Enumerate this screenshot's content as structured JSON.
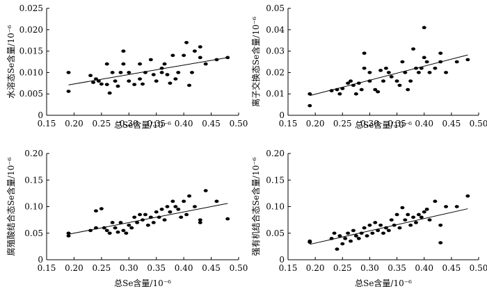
{
  "chart_data": [
    {
      "type": "scatter",
      "xlabel": "总Se含量/10⁻⁶",
      "ylabel": "水溶态Se含量/10⁻⁶",
      "xlim": [
        0.15,
        0.5
      ],
      "ylim": [
        0,
        0.025
      ],
      "xticks": [
        "0.15",
        "0.20",
        "0.25",
        "0.30",
        "0.35",
        "0.40",
        "0.45",
        "0.50"
      ],
      "yticks": [
        "0",
        "0.005",
        "0.010",
        "0.015",
        "0.020",
        "0.025"
      ],
      "trendline": {
        "x": [
          0.19,
          0.48
        ],
        "y": [
          0.0071,
          0.0135
        ]
      },
      "points": [
        [
          0.19,
          0.01
        ],
        [
          0.19,
          0.0056
        ],
        [
          0.23,
          0.0093
        ],
        [
          0.235,
          0.0077
        ],
        [
          0.24,
          0.0085
        ],
        [
          0.245,
          0.008
        ],
        [
          0.25,
          0.0073
        ],
        [
          0.26,
          0.012
        ],
        [
          0.26,
          0.0072
        ],
        [
          0.265,
          0.0052
        ],
        [
          0.27,
          0.01
        ],
        [
          0.275,
          0.008
        ],
        [
          0.28,
          0.0068
        ],
        [
          0.285,
          0.01
        ],
        [
          0.29,
          0.015
        ],
        [
          0.29,
          0.012
        ],
        [
          0.3,
          0.01
        ],
        [
          0.3,
          0.008
        ],
        [
          0.31,
          0.0072
        ],
        [
          0.32,
          0.012
        ],
        [
          0.32,
          0.0085
        ],
        [
          0.325,
          0.0073
        ],
        [
          0.33,
          0.01
        ],
        [
          0.34,
          0.013
        ],
        [
          0.345,
          0.0095
        ],
        [
          0.35,
          0.008
        ],
        [
          0.36,
          0.011
        ],
        [
          0.36,
          0.01
        ],
        [
          0.365,
          0.012
        ],
        [
          0.37,
          0.0095
        ],
        [
          0.375,
          0.0075
        ],
        [
          0.38,
          0.014
        ],
        [
          0.385,
          0.0085
        ],
        [
          0.39,
          0.01
        ],
        [
          0.4,
          0.014
        ],
        [
          0.405,
          0.017
        ],
        [
          0.41,
          0.007
        ],
        [
          0.415,
          0.01
        ],
        [
          0.42,
          0.015
        ],
        [
          0.43,
          0.0135
        ],
        [
          0.43,
          0.016
        ],
        [
          0.44,
          0.012
        ],
        [
          0.46,
          0.013
        ],
        [
          0.48,
          0.0135
        ]
      ]
    },
    {
      "type": "scatter",
      "xlabel": "总Se含量/10⁻⁶",
      "ylabel": "离子交换态Se含量/10⁻⁶",
      "xlim": [
        0.15,
        0.5
      ],
      "ylim": [
        0,
        0.05
      ],
      "xticks": [
        "0.15",
        "0.20",
        "0.25",
        "0.30",
        "0.35",
        "0.40",
        "0.45",
        "0.50"
      ],
      "yticks": [
        "0",
        "0.01",
        "0.02",
        "0.03",
        "0.04",
        "0.05"
      ],
      "trendline": {
        "x": [
          0.19,
          0.48
        ],
        "y": [
          0.0092,
          0.0282
        ]
      },
      "points": [
        [
          0.19,
          0.01
        ],
        [
          0.19,
          0.0045
        ],
        [
          0.23,
          0.0115
        ],
        [
          0.24,
          0.012
        ],
        [
          0.245,
          0.01
        ],
        [
          0.25,
          0.0125
        ],
        [
          0.26,
          0.015
        ],
        [
          0.265,
          0.016
        ],
        [
          0.27,
          0.014
        ],
        [
          0.275,
          0.01
        ],
        [
          0.28,
          0.015
        ],
        [
          0.285,
          0.012
        ],
        [
          0.29,
          0.029
        ],
        [
          0.29,
          0.022
        ],
        [
          0.3,
          0.02
        ],
        [
          0.3,
          0.016
        ],
        [
          0.31,
          0.012
        ],
        [
          0.315,
          0.011
        ],
        [
          0.32,
          0.021
        ],
        [
          0.325,
          0.016
        ],
        [
          0.33,
          0.022
        ],
        [
          0.335,
          0.02
        ],
        [
          0.34,
          0.018
        ],
        [
          0.35,
          0.016
        ],
        [
          0.355,
          0.014
        ],
        [
          0.36,
          0.025
        ],
        [
          0.365,
          0.02
        ],
        [
          0.37,
          0.012
        ],
        [
          0.375,
          0.016
        ],
        [
          0.38,
          0.031
        ],
        [
          0.385,
          0.022
        ],
        [
          0.39,
          0.02
        ],
        [
          0.395,
          0.022
        ],
        [
          0.4,
          0.041
        ],
        [
          0.4,
          0.027
        ],
        [
          0.405,
          0.025
        ],
        [
          0.41,
          0.02
        ],
        [
          0.42,
          0.022
        ],
        [
          0.43,
          0.029
        ],
        [
          0.43,
          0.025
        ],
        [
          0.44,
          0.02
        ],
        [
          0.46,
          0.025
        ],
        [
          0.48,
          0.026
        ]
      ]
    },
    {
      "type": "scatter",
      "xlabel": "总Se含量/10⁻⁶",
      "ylabel": "腐殖酸结合态Se含量/10⁻⁶",
      "xlim": [
        0.15,
        0.5
      ],
      "ylim": [
        0,
        0.2
      ],
      "xticks": [
        "0.15",
        "0.20",
        "0.25",
        "0.30",
        "0.35",
        "0.40",
        "0.45",
        "0.50"
      ],
      "yticks": [
        "0",
        "0.05",
        "0.10",
        "0.15",
        "0.20"
      ],
      "trendline": {
        "x": [
          0.19,
          0.48
        ],
        "y": [
          0.048,
          0.106
        ]
      },
      "points": [
        [
          0.19,
          0.05
        ],
        [
          0.19,
          0.045
        ],
        [
          0.23,
          0.055
        ],
        [
          0.24,
          0.092
        ],
        [
          0.24,
          0.06
        ],
        [
          0.25,
          0.096
        ],
        [
          0.255,
          0.06
        ],
        [
          0.26,
          0.055
        ],
        [
          0.265,
          0.05
        ],
        [
          0.27,
          0.07
        ],
        [
          0.275,
          0.06
        ],
        [
          0.28,
          0.052
        ],
        [
          0.285,
          0.07
        ],
        [
          0.29,
          0.055
        ],
        [
          0.295,
          0.05
        ],
        [
          0.3,
          0.065
        ],
        [
          0.305,
          0.06
        ],
        [
          0.31,
          0.08
        ],
        [
          0.315,
          0.07
        ],
        [
          0.32,
          0.085
        ],
        [
          0.325,
          0.075
        ],
        [
          0.33,
          0.085
        ],
        [
          0.335,
          0.065
        ],
        [
          0.34,
          0.08
        ],
        [
          0.345,
          0.07
        ],
        [
          0.35,
          0.09
        ],
        [
          0.355,
          0.08
        ],
        [
          0.36,
          0.095
        ],
        [
          0.365,
          0.075
        ],
        [
          0.37,
          0.1
        ],
        [
          0.375,
          0.09
        ],
        [
          0.38,
          0.11
        ],
        [
          0.385,
          0.1
        ],
        [
          0.39,
          0.095
        ],
        [
          0.395,
          0.08
        ],
        [
          0.4,
          0.11
        ],
        [
          0.405,
          0.085
        ],
        [
          0.41,
          0.12
        ],
        [
          0.42,
          0.1
        ],
        [
          0.43,
          0.075
        ],
        [
          0.43,
          0.07
        ],
        [
          0.44,
          0.13
        ],
        [
          0.46,
          0.11
        ],
        [
          0.48,
          0.077
        ]
      ]
    },
    {
      "type": "scatter",
      "xlabel": "总Se含量/10⁻⁶",
      "ylabel": "强有机结合态Se含量/10⁻⁶",
      "xlim": [
        0.15,
        0.5
      ],
      "ylim": [
        0,
        0.2
      ],
      "xticks": [
        "0.15",
        "0.20",
        "0.25",
        "0.30",
        "0.35",
        "0.40",
        "0.45",
        "0.50"
      ],
      "yticks": [
        "0",
        "0.05",
        "0.10",
        "0.15",
        "0.20"
      ],
      "trendline": {
        "x": [
          0.19,
          0.48
        ],
        "y": [
          0.029,
          0.096
        ]
      },
      "points": [
        [
          0.19,
          0.035
        ],
        [
          0.19,
          0.033
        ],
        [
          0.23,
          0.04
        ],
        [
          0.235,
          0.05
        ],
        [
          0.24,
          0.02
        ],
        [
          0.245,
          0.045
        ],
        [
          0.25,
          0.03
        ],
        [
          0.255,
          0.04
        ],
        [
          0.26,
          0.05
        ],
        [
          0.265,
          0.035
        ],
        [
          0.27,
          0.055
        ],
        [
          0.275,
          0.045
        ],
        [
          0.28,
          0.04
        ],
        [
          0.285,
          0.05
        ],
        [
          0.29,
          0.06
        ],
        [
          0.295,
          0.045
        ],
        [
          0.3,
          0.065
        ],
        [
          0.305,
          0.05
        ],
        [
          0.31,
          0.07
        ],
        [
          0.315,
          0.055
        ],
        [
          0.32,
          0.065
        ],
        [
          0.325,
          0.05
        ],
        [
          0.33,
          0.06
        ],
        [
          0.335,
          0.055
        ],
        [
          0.34,
          0.075
        ],
        [
          0.345,
          0.065
        ],
        [
          0.35,
          0.085
        ],
        [
          0.355,
          0.06
        ],
        [
          0.36,
          0.098
        ],
        [
          0.365,
          0.075
        ],
        [
          0.37,
          0.085
        ],
        [
          0.375,
          0.065
        ],
        [
          0.38,
          0.08
        ],
        [
          0.385,
          0.07
        ],
        [
          0.39,
          0.085
        ],
        [
          0.395,
          0.08
        ],
        [
          0.4,
          0.09
        ],
        [
          0.405,
          0.095
        ],
        [
          0.41,
          0.075
        ],
        [
          0.42,
          0.11
        ],
        [
          0.43,
          0.065
        ],
        [
          0.43,
          0.032
        ],
        [
          0.44,
          0.1
        ],
        [
          0.46,
          0.1
        ],
        [
          0.48,
          0.12
        ]
      ]
    }
  ]
}
